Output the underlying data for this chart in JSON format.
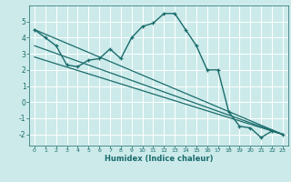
{
  "xlabel": "Humidex (Indice chaleur)",
  "ylabel": "",
  "bg_color": "#cceaea",
  "line_color": "#1a6b6b",
  "grid_color": "#ffffff",
  "xlim": [
    -0.5,
    23.5
  ],
  "ylim": [
    -2.7,
    6.0
  ],
  "xticks": [
    0,
    1,
    2,
    3,
    4,
    5,
    6,
    7,
    8,
    9,
    10,
    11,
    12,
    13,
    14,
    15,
    16,
    17,
    18,
    19,
    20,
    21,
    22,
    23
  ],
  "yticks": [
    -2,
    -1,
    0,
    1,
    2,
    3,
    4,
    5
  ],
  "line1_x": [
    0,
    1,
    2,
    3,
    4,
    5,
    6,
    7,
    8,
    9,
    10,
    11,
    12,
    13,
    14,
    15,
    16,
    17,
    18,
    19,
    20,
    21,
    22,
    23
  ],
  "line1_y": [
    4.5,
    4.0,
    3.5,
    2.3,
    2.2,
    2.6,
    2.7,
    3.3,
    2.7,
    4.0,
    4.7,
    4.9,
    5.5,
    5.5,
    4.5,
    3.5,
    2.0,
    2.0,
    -0.6,
    -1.5,
    -1.6,
    -2.2,
    -1.8,
    -2.0
  ],
  "line2_x": [
    0,
    23
  ],
  "line2_y": [
    4.5,
    -2.0
  ],
  "line3_x": [
    0,
    23
  ],
  "line3_y": [
    3.5,
    -2.0
  ],
  "line4_x": [
    0,
    23
  ],
  "line4_y": [
    2.8,
    -2.0
  ]
}
